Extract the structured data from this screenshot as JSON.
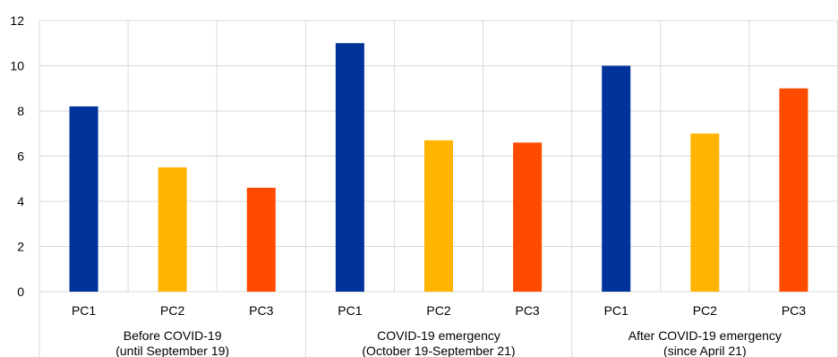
{
  "chart_data": {
    "type": "bar",
    "ylim": [
      0,
      12
    ],
    "yticks": [
      0,
      2,
      4,
      6,
      8,
      10,
      12
    ],
    "grid": true,
    "groups": [
      {
        "label_line1": "Before COVID-19",
        "label_line2": "(until September 19)",
        "bars": [
          {
            "category": "PC1",
            "value": 8.2,
            "color": "#003399"
          },
          {
            "category": "PC2",
            "value": 5.5,
            "color": "#FFB400"
          },
          {
            "category": "PC3",
            "value": 4.6,
            "color": "#FF4B00"
          }
        ]
      },
      {
        "label_line1": "COVID-19 emergency",
        "label_line2": "(October 19-September 21)",
        "bars": [
          {
            "category": "PC1",
            "value": 11.0,
            "color": "#003399"
          },
          {
            "category": "PC2",
            "value": 6.7,
            "color": "#FFB400"
          },
          {
            "category": "PC3",
            "value": 6.6,
            "color": "#FF4B00"
          }
        ]
      },
      {
        "label_line1": "After COVID-19 emergency",
        "label_line2": "(since April 21)",
        "bars": [
          {
            "category": "PC1",
            "value": 10.0,
            "color": "#003399"
          },
          {
            "category": "PC2",
            "value": 7.0,
            "color": "#FFB400"
          },
          {
            "category": "PC3",
            "value": 9.0,
            "color": "#FF4B00"
          }
        ]
      }
    ]
  }
}
